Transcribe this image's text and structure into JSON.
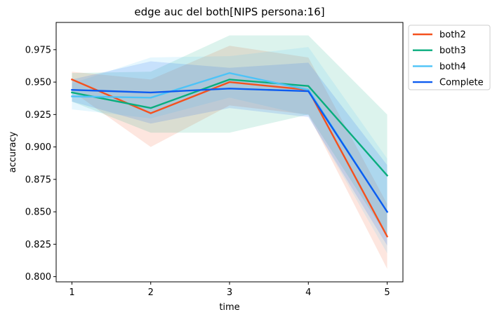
{
  "chart_data": {
    "type": "line",
    "title": "edge auc del both[NIPS persona:16]",
    "xlabel": "time",
    "ylabel": "accuracy",
    "x": [
      1,
      2,
      3,
      4,
      5
    ],
    "xticks": [
      "1",
      "2",
      "3",
      "4",
      "5"
    ],
    "yticks": [
      "0.800",
      "0.825",
      "0.850",
      "0.875",
      "0.900",
      "0.925",
      "0.950",
      "0.975"
    ],
    "xlim": [
      0.8,
      5.2
    ],
    "ylim": [
      0.796,
      0.996
    ],
    "grid": false,
    "legend_position": "outside-top-right",
    "series": [
      {
        "name": "both2",
        "color": "#f4511e",
        "values": [
          0.952,
          0.926,
          0.95,
          0.944,
          0.831
        ],
        "lower": [
          0.943,
          0.9,
          0.932,
          0.925,
          0.806
        ],
        "upper": [
          0.958,
          0.952,
          0.978,
          0.969,
          0.856
        ]
      },
      {
        "name": "both3",
        "color": "#0aad7e",
        "values": [
          0.942,
          0.93,
          0.952,
          0.947,
          0.878
        ],
        "lower": [
          0.935,
          0.911,
          0.911,
          0.925,
          0.831
        ],
        "upper": [
          0.957,
          0.958,
          0.986,
          0.986,
          0.925
        ]
      },
      {
        "name": "both4",
        "color": "#4dc3f7",
        "values": [
          0.939,
          0.938,
          0.957,
          0.944,
          0.85
        ],
        "lower": [
          0.929,
          0.922,
          0.938,
          0.924,
          0.818
        ],
        "upper": [
          0.949,
          0.969,
          0.97,
          0.977,
          0.891
        ]
      },
      {
        "name": "Complete",
        "color": "#0d5cf0",
        "values": [
          0.944,
          0.942,
          0.945,
          0.943,
          0.85
        ],
        "lower": [
          0.935,
          0.918,
          0.93,
          0.923,
          0.824
        ],
        "upper": [
          0.952,
          0.966,
          0.961,
          0.965,
          0.886
        ]
      }
    ]
  }
}
